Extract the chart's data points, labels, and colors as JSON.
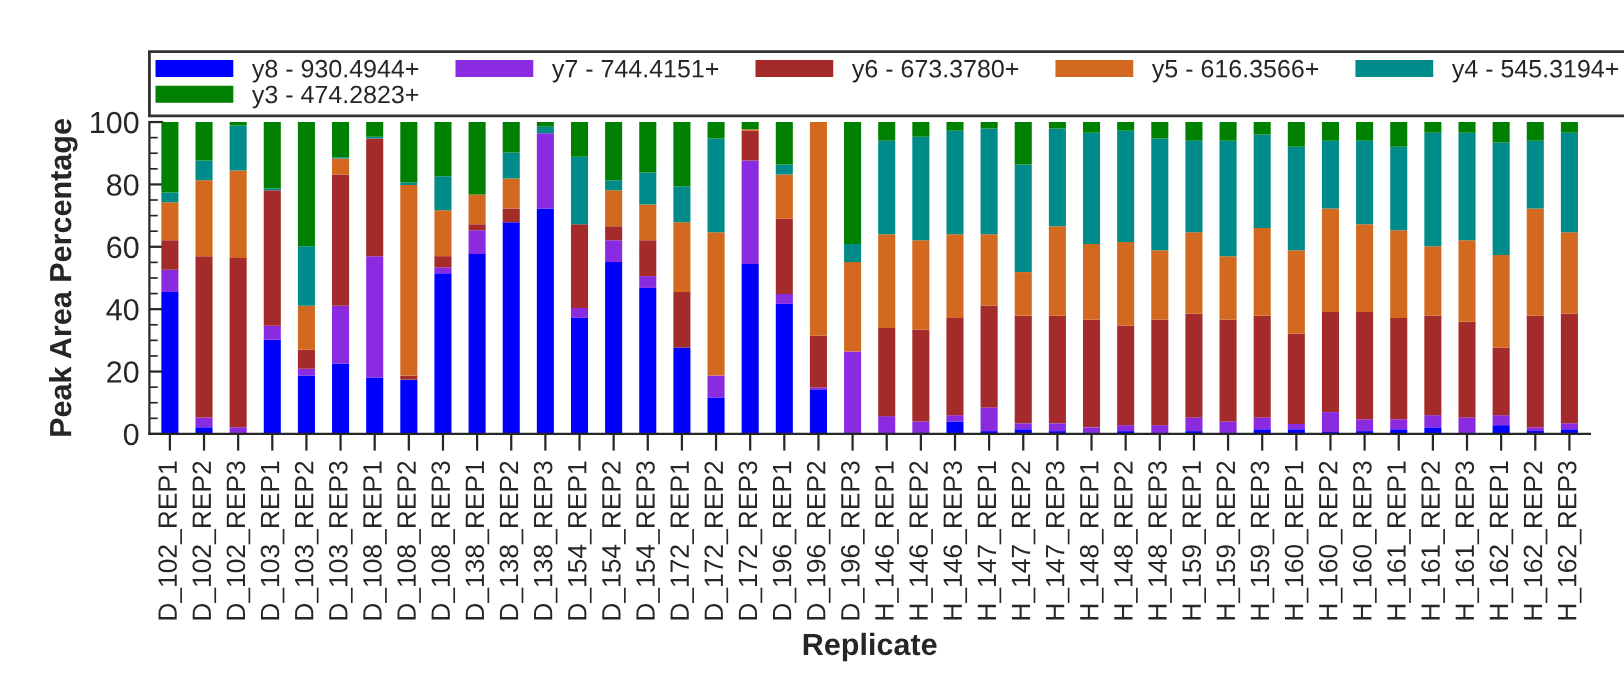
{
  "chart_data": {
    "type": "bar",
    "stacked": true,
    "xlabel": "Replicate",
    "ylabel": "Peak Area Percentage",
    "categories": [
      "D_102_REP1",
      "D_102_REP2",
      "D_102_REP3",
      "D_103_REP1",
      "D_103_REP2",
      "D_103_REP3",
      "D_108_REP1",
      "D_108_REP2",
      "D_108_REP3",
      "D_138_REP1",
      "D_138_REP2",
      "D_138_REP3",
      "D_154_REP1",
      "D_154_REP2",
      "D_154_REP3",
      "D_172_REP1",
      "D_172_REP2",
      "D_172_REP3",
      "D_196_REP1",
      "D_196_REP2",
      "D_196_REP3",
      "H_146_REP1",
      "H_146_REP2",
      "H_146_REP3",
      "H_147_REP1",
      "H_147_REP2",
      "H_147_REP3",
      "H_148_REP1",
      "H_148_REP2",
      "H_148_REP3",
      "H_159_REP1",
      "H_159_REP2",
      "H_159_REP3",
      "H_160_REP1",
      "H_160_REP2",
      "H_160_REP3",
      "H_161_REP1",
      "H_161_REP2",
      "H_161_REP3",
      "H_162_REP1",
      "H_162_REP2",
      "H_162_REP3"
    ],
    "series": [
      {
        "name": "y8 - 930.4944+",
        "color": "#0000ff",
        "values": [
          45.5,
          2.1,
          0,
          30.2,
          18.7,
          22.6,
          18.1,
          17.4,
          51.5,
          57.7,
          67.9,
          72.3,
          37.2,
          55.1,
          46.8,
          27.7,
          11.7,
          54.5,
          41.7,
          14.3,
          0,
          0,
          0,
          4.0,
          0.9,
          1.5,
          0.9,
          0,
          0.9,
          0,
          0.9,
          0,
          1.5,
          1.5,
          0.6,
          0.9,
          1.5,
          2.1,
          0,
          2.8,
          0.9,
          1.5
        ]
      },
      {
        "name": "y7 - 744.4151+",
        "color": "#8a2be2",
        "values": [
          7.1,
          3.2,
          2.1,
          4.5,
          2.2,
          18.5,
          38.9,
          0,
          1.9,
          7.6,
          0,
          24.1,
          3.2,
          7.0,
          3.8,
          0,
          7.0,
          33.2,
          3.2,
          0.6,
          26.4,
          5.7,
          4.0,
          2.0,
          7.6,
          1.9,
          2.5,
          2.1,
          1.9,
          2.8,
          4.4,
          4.0,
          3.8,
          1.7,
          6.4,
          3.8,
          3.2,
          3.9,
          5.3,
          3.2,
          1.2,
          1.9
        ]
      },
      {
        "name": "y6 - 673.3780+",
        "color": "#a52a2a",
        "values": [
          9.5,
          51.7,
          54.3,
          43.4,
          6.1,
          42.1,
          37.7,
          1.3,
          3.6,
          1.9,
          4.4,
          0,
          26.8,
          4.5,
          11.5,
          17.8,
          0,
          9.5,
          24.2,
          16.6,
          0,
          28.3,
          29.4,
          31.2,
          32.6,
          34.5,
          34.5,
          34.5,
          31.9,
          33.8,
          33.2,
          32.6,
          32.6,
          28.9,
          32.1,
          34.4,
          32.5,
          31.9,
          30.7,
          21.7,
          35.8,
          35.1
        ]
      },
      {
        "name": "y5 - 616.3566+",
        "color": "#d2691e",
        "values": [
          12.2,
          24.3,
          28.1,
          0,
          14.1,
          5.1,
          0,
          61.1,
          14.7,
          9.6,
          9.6,
          0,
          0,
          11.5,
          11.5,
          22.4,
          46.0,
          0.5,
          14.1,
          68.5,
          28.7,
          30.0,
          28.7,
          26.8,
          22.9,
          14.0,
          28.7,
          24.3,
          26.8,
          22.3,
          26.2,
          20.4,
          28.1,
          26.8,
          33.2,
          28.1,
          28.1,
          22.3,
          26.1,
          29.7,
          34.4,
          26.2
        ]
      },
      {
        "name": "y4 - 545.3194+",
        "color": "#008b8b",
        "values": [
          3.1,
          6.4,
          14.4,
          0.6,
          19.1,
          0.4,
          0.6,
          0.8,
          10.9,
          0,
          8.3,
          2.1,
          21.7,
          3.2,
          10.2,
          11.5,
          30.0,
          0,
          3.2,
          0,
          5.8,
          30.0,
          33.2,
          33.2,
          33.9,
          34.5,
          31.3,
          35.7,
          35.7,
          35.8,
          29.3,
          37.0,
          30.0,
          33.2,
          21.7,
          26.8,
          26.8,
          36.4,
          34.5,
          36.0,
          21.7,
          31.9
        ]
      },
      {
        "name": "y3 - 474.2823+",
        "color": "#008000",
        "values": [
          22.6,
          12.3,
          1.1,
          21.3,
          39.8,
          11.3,
          4.7,
          19.4,
          17.4,
          23.2,
          9.8,
          1.5,
          11.1,
          18.7,
          16.2,
          20.6,
          5.3,
          2.3,
          13.6,
          0,
          39.1,
          6.0,
          4.7,
          2.8,
          2.1,
          13.6,
          2.1,
          3.4,
          2.8,
          5.3,
          6.0,
          6.0,
          4.0,
          7.9,
          6.0,
          6.0,
          7.9,
          3.4,
          3.4,
          6.6,
          6.0,
          3.4
        ]
      }
    ],
    "ylim": [
      0,
      100
    ],
    "yticks": [
      0,
      20,
      40,
      60,
      80,
      100
    ],
    "grid": false,
    "legend": "top"
  }
}
